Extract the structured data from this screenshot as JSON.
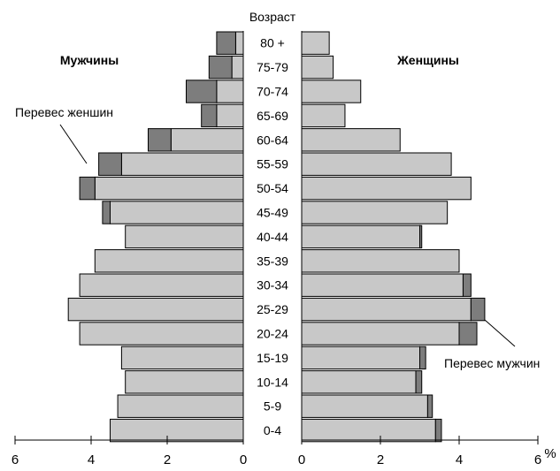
{
  "chart_data": {
    "type": "bar",
    "title": "Возраст",
    "xlabel": "%",
    "categories": [
      "0-4",
      "5-9",
      "10-14",
      "15-19",
      "20-24",
      "25-29",
      "30-34",
      "35-39",
      "40-44",
      "45-49",
      "50-54",
      "55-59",
      "60-64",
      "65-69",
      "70-74",
      "75-79",
      "80 +"
    ],
    "male_label": "Мужчины",
    "female_label": "Женщины",
    "series": [
      {
        "name": "Мужчины",
        "values": [
          3.5,
          3.3,
          3.1,
          3.2,
          4.3,
          4.6,
          4.3,
          3.9,
          3.1,
          3.5,
          3.9,
          3.2,
          1.9,
          0.7,
          0.7,
          0.3,
          0.2
        ]
      },
      {
        "name": "Женщины",
        "values": [
          3.4,
          3.2,
          2.9,
          3.0,
          4.0,
          4.3,
          4.1,
          4.0,
          3.0,
          3.7,
          4.3,
          3.8,
          2.5,
          1.1,
          1.5,
          0.8,
          0.7
        ]
      }
    ],
    "excess_female_in_male_side": [
      0.0,
      0.0,
      0.0,
      0.0,
      0.0,
      0.0,
      0.0,
      0.0,
      0.0,
      0.2,
      0.4,
      0.6,
      0.6,
      0.4,
      0.8,
      0.6,
      0.5
    ],
    "excess_male_in_female_side": [
      0.15,
      0.12,
      0.15,
      0.15,
      0.45,
      0.35,
      0.2,
      0.0,
      0.05,
      0.0,
      0.0,
      0.0,
      0.0,
      0.0,
      0.0,
      0.0,
      0.0
    ],
    "left_axis": {
      "range": [
        0,
        6
      ],
      "ticks": [
        "0",
        "2",
        "4",
        "6"
      ]
    },
    "right_axis": {
      "range": [
        0,
        6
      ],
      "ticks": [
        "0",
        "2",
        "4",
        "6"
      ]
    },
    "annotations": {
      "female_excess": "Перевес женшин",
      "male_excess": "Перевес мужчин"
    },
    "colors": {
      "main": "#c8c8c8",
      "excess": "#7d7d7d",
      "stroke": "#000000"
    }
  }
}
